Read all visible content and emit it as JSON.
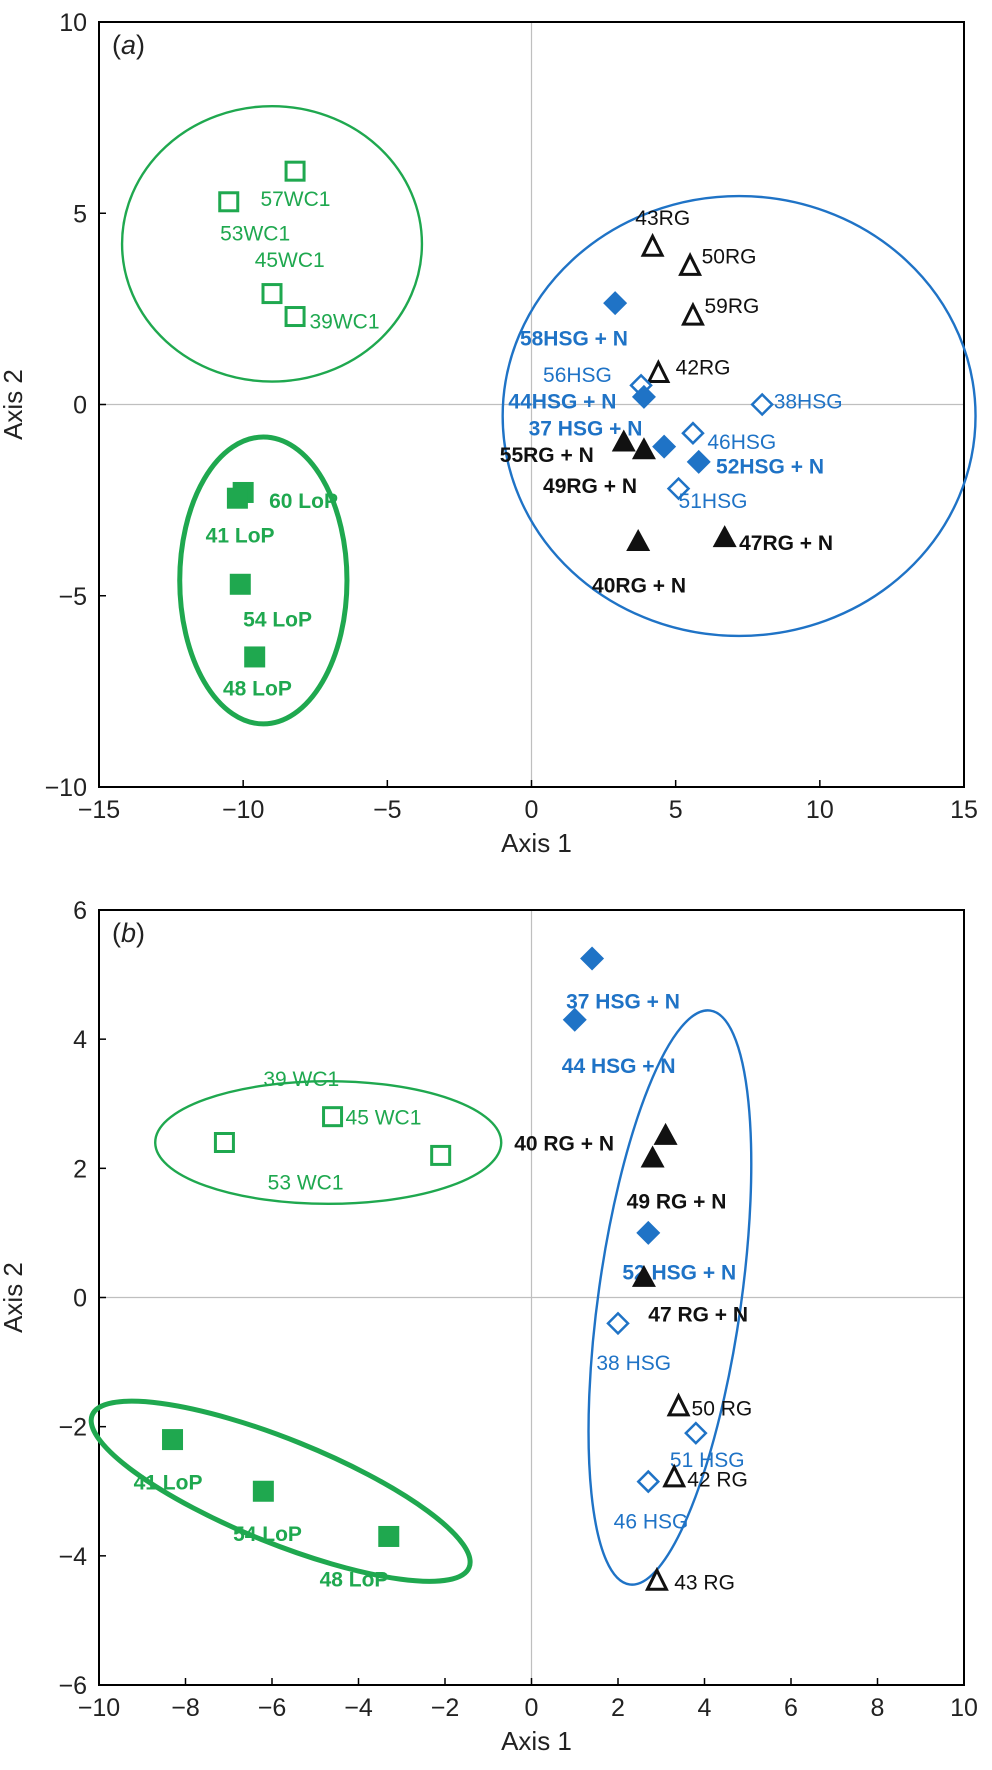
{
  "colors": {
    "green": "#1fa84f",
    "blue": "#1f73c6",
    "black": "#111111",
    "grid": "#bfbfbf",
    "frame": "#000000"
  },
  "chart_data": [
    {
      "type": "scatter",
      "panel_label": "a",
      "xlabel": "Axis 1",
      "ylabel": "Axis 2",
      "xlim": [
        -15,
        15
      ],
      "ylim": [
        -10,
        10
      ],
      "xticks": [
        -15,
        -10,
        -5,
        0,
        5,
        10,
        15
      ],
      "yticks": [
        -10,
        -5,
        0,
        5,
        10
      ],
      "xtick_labels": [
        "−15",
        "−10",
        "−5",
        "0",
        "5",
        "10",
        "15"
      ],
      "ytick_labels": [
        "−10",
        "−5",
        "0",
        "5",
        "10"
      ],
      "ellipses": [
        {
          "color": "green",
          "width": "thin",
          "cx": -9.0,
          "cy": 4.2,
          "rx": 5.2,
          "ry": 3.6
        },
        {
          "color": "green",
          "width": "thick",
          "cx": -9.3,
          "cy": -4.6,
          "rx": 2.9,
          "ry": 3.75
        },
        {
          "color": "blue",
          "width": "thin",
          "cx": 7.2,
          "cy": -0.3,
          "rx": 8.2,
          "ry": 5.75
        }
      ],
      "points": [
        {
          "label": "57WC1",
          "x": -8.2,
          "y": 6.1,
          "marker": "square-open",
          "color": "green",
          "bold": false,
          "dx": -1.2,
          "dy": -0.7
        },
        {
          "label": "53WC1",
          "x": -10.5,
          "y": 5.3,
          "marker": "square-open",
          "color": "green",
          "bold": false,
          "dx": -0.3,
          "dy": -0.8
        },
        {
          "label": "45WC1",
          "x": -9.0,
          "y": 2.9,
          "marker": "square-open",
          "color": "green",
          "bold": false,
          "dx": -0.6,
          "dy": 0.9
        },
        {
          "label": "39WC1",
          "x": -8.2,
          "y": 2.3,
          "marker": "square-open",
          "color": "green",
          "bold": false,
          "dx": 0.5,
          "dy": -0.1
        },
        {
          "label": "60 LoP",
          "x": -10.0,
          "y": -2.3,
          "marker": "square-filled",
          "color": "green",
          "bold": true,
          "dx": 0.9,
          "dy": -0.2
        },
        {
          "label": "41 LoP",
          "x": -10.2,
          "y": -2.45,
          "marker": "square-filled",
          "color": "green",
          "bold": true,
          "dx": -1.1,
          "dy": -0.95
        },
        {
          "label": "54 LoP",
          "x": -10.1,
          "y": -4.7,
          "marker": "square-filled",
          "color": "green",
          "bold": true,
          "dx": 0.1,
          "dy": -0.9
        },
        {
          "label": "48 LoP",
          "x": -9.6,
          "y": -6.6,
          "marker": "square-filled",
          "color": "green",
          "bold": true,
          "dx": -1.1,
          "dy": -0.8
        },
        {
          "label": "43RG",
          "x": 4.2,
          "y": 4.1,
          "marker": "triangle-open",
          "color": "black",
          "bold": false,
          "dx": -0.6,
          "dy": 0.8
        },
        {
          "label": "50RG",
          "x": 5.5,
          "y": 3.6,
          "marker": "triangle-open",
          "color": "black",
          "bold": false,
          "dx": 0.4,
          "dy": 0.3
        },
        {
          "label": "59RG",
          "x": 5.6,
          "y": 2.3,
          "marker": "triangle-open",
          "color": "black",
          "bold": false,
          "dx": 0.4,
          "dy": 0.3
        },
        {
          "label": "42RG",
          "x": 4.4,
          "y": 0.8,
          "marker": "triangle-open",
          "color": "black",
          "bold": false,
          "dx": 0.6,
          "dy": 0.2
        },
        {
          "label": "58HSG + N",
          "x": 2.9,
          "y": 2.65,
          "marker": "diamond-filled",
          "color": "blue",
          "bold": true,
          "dx": -3.3,
          "dy": -0.9
        },
        {
          "label": "56HSG",
          "x": 3.8,
          "y": 0.5,
          "marker": "diamond-open",
          "color": "blue",
          "bold": false,
          "dx": -3.4,
          "dy": 0.3
        },
        {
          "label": "44HSG + N",
          "x": 3.9,
          "y": 0.2,
          "marker": "diamond-filled",
          "color": "blue",
          "bold": true,
          "dx": -4.7,
          "dy": -0.1
        },
        {
          "label": "38HSG",
          "x": 8.0,
          "y": 0.0,
          "marker": "diamond-open",
          "color": "blue",
          "bold": false,
          "dx": 0.4,
          "dy": 0.1
        },
        {
          "label": "37 HSG + N",
          "x": 4.6,
          "y": -1.1,
          "marker": "diamond-filled",
          "color": "blue",
          "bold": true,
          "dx": -4.7,
          "dy": 0.5
        },
        {
          "label": "46HSG",
          "x": 5.6,
          "y": -0.75,
          "marker": "diamond-open",
          "color": "blue",
          "bold": false,
          "dx": 0.5,
          "dy": -0.2
        },
        {
          "label": "55RG + N",
          "x": 3.2,
          "y": -1.0,
          "marker": "triangle-filled",
          "color": "black",
          "bold": true,
          "dx": -4.3,
          "dy": -0.3
        },
        {
          "label": "49RG + N",
          "x": 3.9,
          "y": -1.2,
          "marker": "triangle-filled",
          "color": "black",
          "bold": true,
          "dx": -3.5,
          "dy": -0.9
        },
        {
          "label": "52HSG + N",
          "x": 5.8,
          "y": -1.5,
          "marker": "diamond-filled",
          "color": "blue",
          "bold": true,
          "dx": 0.6,
          "dy": -0.1
        },
        {
          "label": "51HSG",
          "x": 5.1,
          "y": -2.2,
          "marker": "diamond-open",
          "color": "blue",
          "bold": false,
          "dx": 0.0,
          "dy": -0.3
        },
        {
          "label": "40RG + N",
          "x": 3.7,
          "y": -3.6,
          "marker": "triangle-filled",
          "color": "black",
          "bold": true,
          "dx": -1.6,
          "dy": -1.1
        },
        {
          "label": "47RG + N",
          "x": 6.7,
          "y": -3.5,
          "marker": "triangle-filled",
          "color": "black",
          "bold": true,
          "dx": 0.5,
          "dy": -0.1
        }
      ]
    },
    {
      "type": "scatter",
      "panel_label": "b",
      "xlabel": "Axis 1",
      "ylabel": "Axis 2",
      "xlim": [
        -10,
        10
      ],
      "ylim": [
        -6,
        6
      ],
      "xticks": [
        -10,
        -8,
        -6,
        -4,
        -2,
        0,
        2,
        4,
        6,
        8,
        10
      ],
      "yticks": [
        -6,
        -4,
        -2,
        0,
        2,
        4,
        6
      ],
      "xtick_labels": [
        "−10",
        "−8",
        "−6",
        "−4",
        "−2",
        "0",
        "2",
        "4",
        "6",
        "8",
        "10"
      ],
      "ytick_labels": [
        "−6",
        "−4",
        "−2",
        "0",
        "2",
        "4",
        "6"
      ],
      "ellipses": [
        {
          "color": "green",
          "width": "thin",
          "cx": -4.7,
          "cy": 2.4,
          "rx": 4.0,
          "ry": 0.95,
          "rotate": 0
        },
        {
          "color": "green",
          "width": "thick",
          "cx": -5.8,
          "cy": -3.0,
          "rx": 4.7,
          "ry": 1.2,
          "rotate": 22
        },
        {
          "color": "blue",
          "width": "thin",
          "cx": 3.2,
          "cy": 0.0,
          "rx": 6.7,
          "ry": 1.65,
          "rotate": 98
        }
      ],
      "points": [
        {
          "label": "39 WC1",
          "x": -4.6,
          "y": 2.8,
          "marker": "square-open",
          "color": "green",
          "bold": false,
          "dx": -1.6,
          "dy": 0.6
        },
        {
          "label": "53 WC1",
          "x": -7.1,
          "y": 2.4,
          "marker": "square-open",
          "color": "green",
          "bold": false,
          "dx": 1.0,
          "dy": -0.6
        },
        {
          "label": "45 WC1",
          "x": -2.1,
          "y": 2.2,
          "marker": "square-open",
          "color": "green",
          "bold": false,
          "dx": -2.2,
          "dy": 0.6
        },
        {
          "label": "41 LoP",
          "x": -8.3,
          "y": -2.2,
          "marker": "square-filled",
          "color": "green",
          "bold": true,
          "dx": -0.9,
          "dy": -0.65
        },
        {
          "label": "54 LoP",
          "x": -6.2,
          "y": -3.0,
          "marker": "square-filled",
          "color": "green",
          "bold": true,
          "dx": -0.7,
          "dy": -0.65
        },
        {
          "label": "48 LoP",
          "x": -3.3,
          "y": -3.7,
          "marker": "square-filled",
          "color": "green",
          "bold": true,
          "dx": -1.6,
          "dy": -0.65
        },
        {
          "label": "37 HSG + N",
          "x": 1.4,
          "y": 5.25,
          "marker": "diamond-filled",
          "color": "blue",
          "bold": true,
          "dx": -0.6,
          "dy": -0.65
        },
        {
          "label": "44 HSG + N",
          "x": 1.0,
          "y": 4.3,
          "marker": "diamond-filled",
          "color": "blue",
          "bold": true,
          "dx": -0.3,
          "dy": -0.7
        },
        {
          "label": "40 RG + N",
          "x": 3.1,
          "y": 2.5,
          "marker": "triangle-filled",
          "color": "black",
          "bold": true,
          "dx": -3.5,
          "dy": -0.1
        },
        {
          "label": "49 RG + N",
          "x": 2.8,
          "y": 2.15,
          "marker": "triangle-filled",
          "color": "black",
          "bold": true,
          "dx": -0.6,
          "dy": -0.65
        },
        {
          "label": "52 HSG + N",
          "x": 2.7,
          "y": 1.0,
          "marker": "diamond-filled",
          "color": "blue",
          "bold": true,
          "dx": -0.6,
          "dy": -0.6
        },
        {
          "label": "47 RG + N",
          "x": 2.6,
          "y": 0.3,
          "marker": "triangle-filled",
          "color": "black",
          "bold": true,
          "dx": 0.1,
          "dy": -0.55
        },
        {
          "label": "38 HSG",
          "x": 2.0,
          "y": -0.4,
          "marker": "diamond-open",
          "color": "blue",
          "bold": false,
          "dx": -0.5,
          "dy": -0.6
        },
        {
          "label": "50 RG",
          "x": 3.4,
          "y": -1.7,
          "marker": "triangle-open",
          "color": "black",
          "bold": false,
          "dx": 0.3,
          "dy": 0.0
        },
        {
          "label": "51 HSG",
          "x": 3.8,
          "y": -2.1,
          "marker": "diamond-open",
          "color": "blue",
          "bold": false,
          "dx": -0.6,
          "dy": -0.4
        },
        {
          "label": "42 RG",
          "x": 3.3,
          "y": -2.8,
          "marker": "triangle-open",
          "color": "black",
          "bold": false,
          "dx": 0.3,
          "dy": 0.0
        },
        {
          "label": "46 HSG",
          "x": 2.7,
          "y": -2.85,
          "marker": "diamond-open",
          "color": "blue",
          "bold": false,
          "dx": -0.8,
          "dy": -0.6
        },
        {
          "label": "43 RG",
          "x": 2.9,
          "y": -4.4,
          "marker": "triangle-open",
          "color": "black",
          "bold": false,
          "dx": 0.4,
          "dy": 0.0
        }
      ]
    }
  ]
}
